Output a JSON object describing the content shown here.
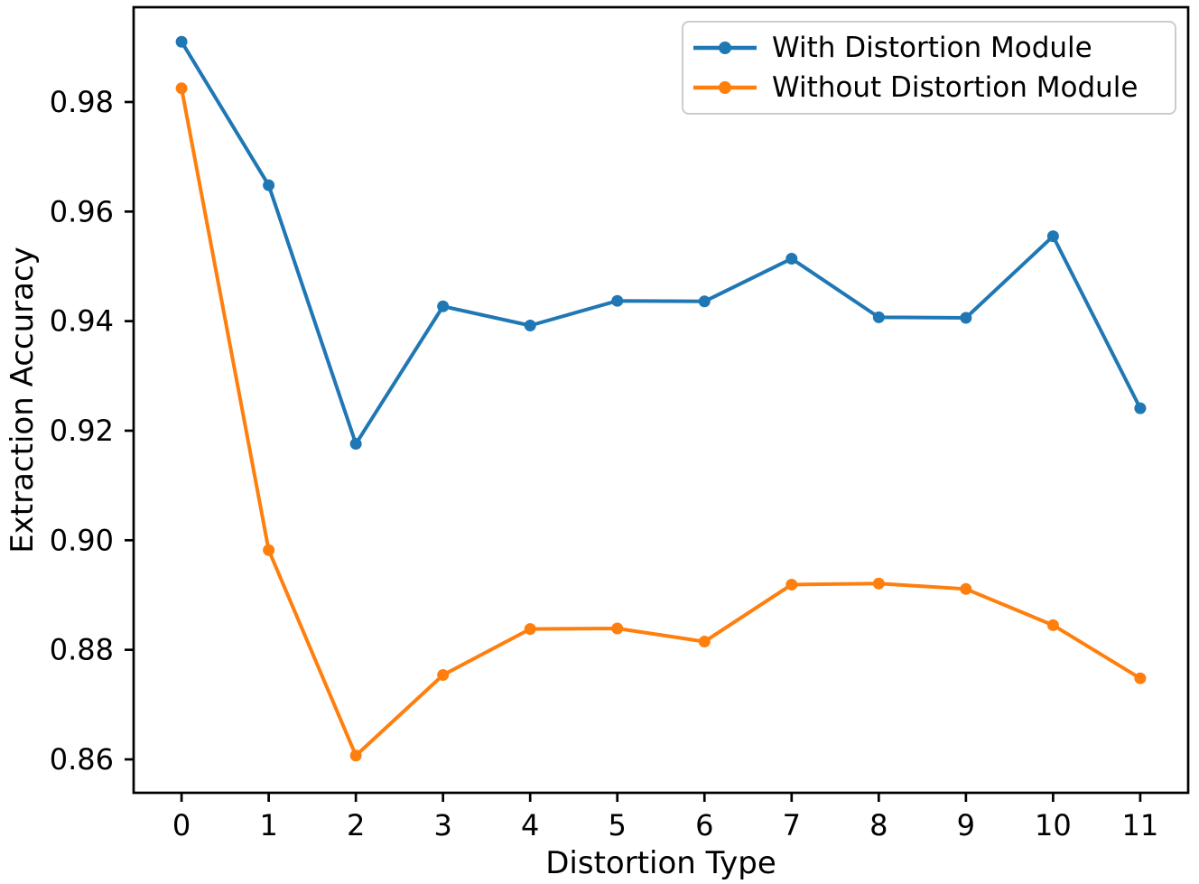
{
  "chart_data": {
    "type": "line",
    "x": [
      0,
      1,
      2,
      3,
      4,
      5,
      6,
      7,
      8,
      9,
      10,
      11
    ],
    "series": [
      {
        "name": "With Distortion Module",
        "color": "#1f77b4",
        "values": [
          0.991,
          0.9648,
          0.9176,
          0.9427,
          0.9392,
          0.9437,
          0.9436,
          0.9514,
          0.9407,
          0.9406,
          0.9555,
          0.9241
        ]
      },
      {
        "name": "Without Distortion Module",
        "color": "#ff7f0e",
        "values": [
          0.9825,
          0.8982,
          0.8607,
          0.8754,
          0.8838,
          0.8839,
          0.8815,
          0.8919,
          0.8921,
          0.8911,
          0.8845,
          0.8748
        ]
      }
    ],
    "xlabel": "Distortion Type",
    "ylabel": "Extraction Accuracy",
    "xlim": [
      -0.55,
      11.55
    ],
    "ylim": [
      0.8539,
      0.9973
    ],
    "xticks": [
      0,
      1,
      2,
      3,
      4,
      5,
      6,
      7,
      8,
      9,
      10,
      11
    ],
    "xtick_labels": [
      "0",
      "1",
      "2",
      "3",
      "4",
      "5",
      "6",
      "7",
      "8",
      "9",
      "10",
      "11"
    ],
    "yticks": [
      0.86,
      0.88,
      0.9,
      0.92,
      0.94,
      0.96,
      0.98
    ],
    "ytick_labels": [
      "0.86",
      "0.88",
      "0.90",
      "0.92",
      "0.94",
      "0.96",
      "0.98"
    ],
    "grid": false,
    "legend_position": "upper right",
    "axis_color": "#000000",
    "marker": "circle",
    "line_width": 4,
    "marker_radius": 6.5
  }
}
